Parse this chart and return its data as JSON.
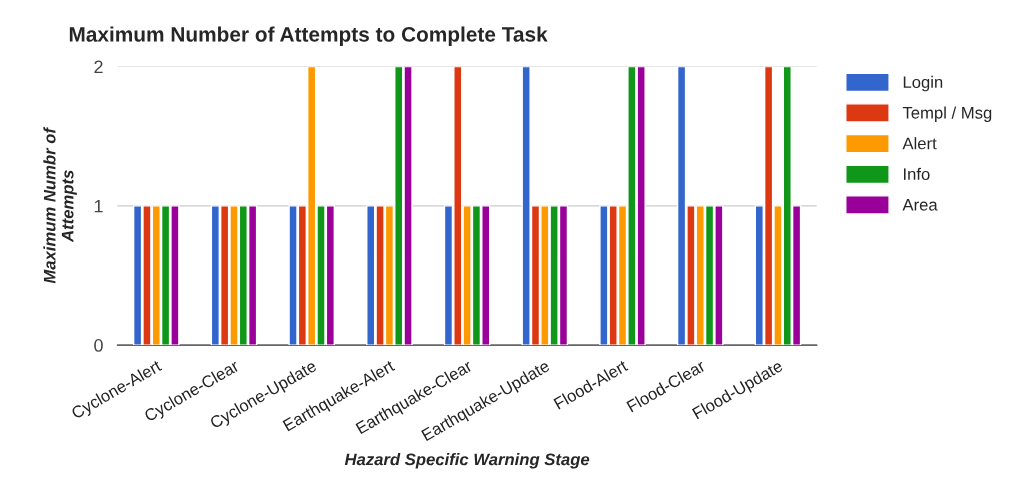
{
  "chart_data": {
    "type": "bar",
    "title": "Maximum Number of Attempts to Complete Task",
    "xlabel": "Hazard Specific Warning Stage",
    "ylabel": "Maximum Numbr of\nAttempts",
    "categories": [
      "Cyclone-Alert",
      "Cyclone-Clear",
      "Cyclone-Update",
      "Earthquake-Alert",
      "Earthquake-Clear",
      "Earthquake-Update",
      "Flood-Alert",
      "Flood-Clear",
      "Flood-Update"
    ],
    "series": [
      {
        "name": "Login",
        "color": "#3366cc",
        "values": [
          1,
          1,
          1,
          1,
          1,
          2,
          1,
          2,
          1
        ]
      },
      {
        "name": "Templ / Msg",
        "color": "#dc3912",
        "values": [
          1,
          1,
          1,
          1,
          2,
          1,
          1,
          1,
          2
        ]
      },
      {
        "name": "Alert",
        "color": "#ff9900",
        "values": [
          1,
          1,
          2,
          1,
          1,
          1,
          1,
          1,
          1
        ]
      },
      {
        "name": "Info",
        "color": "#109618",
        "values": [
          1,
          1,
          1,
          2,
          1,
          1,
          2,
          1,
          2
        ]
      },
      {
        "name": "Area",
        "color": "#990099",
        "values": [
          1,
          1,
          1,
          2,
          1,
          1,
          2,
          1,
          1
        ]
      }
    ],
    "ylim": [
      0,
      2
    ],
    "yticks": [
      0,
      1,
      2
    ],
    "grid": "y",
    "legend": "right"
  }
}
